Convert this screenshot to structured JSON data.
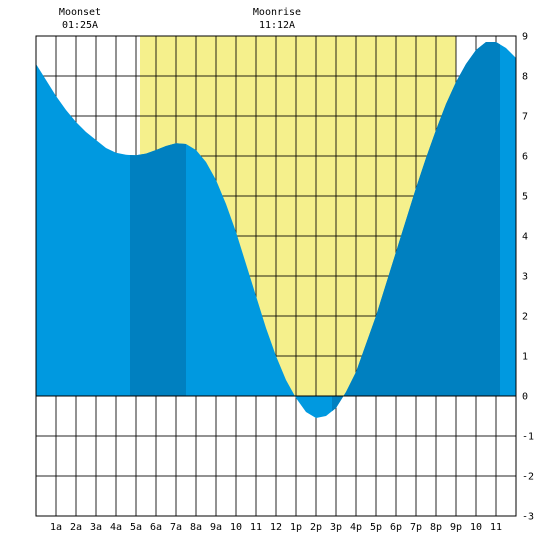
{
  "header": {
    "moonset_label": "Moonset",
    "moonset_time": "01:25A",
    "moonrise_label": "Moonrise",
    "moonrise_time": "11:12A"
  },
  "chart_data": {
    "type": "area",
    "title": "",
    "xlabel": "",
    "ylabel": "",
    "xlim": [
      0,
      24
    ],
    "ylim": [
      -3,
      9
    ],
    "x_tick_labels": [
      "1a",
      "2a",
      "3a",
      "4a",
      "5a",
      "6a",
      "7a",
      "8a",
      "9a",
      "10",
      "11",
      "12",
      "1p",
      "2p",
      "3p",
      "4p",
      "5p",
      "6p",
      "7p",
      "8p",
      "9p",
      "10",
      "11"
    ],
    "y_tick_labels": [
      "9",
      "8",
      "7",
      "6",
      "5",
      "4",
      "3",
      "2",
      "1",
      "0",
      "-1",
      "-2",
      "-3"
    ],
    "daylight": {
      "start_hour": 5.2,
      "end_hour": 21.0
    },
    "highlight_bands": [
      {
        "start_hour": 4.7,
        "end_hour": 7.5
      },
      {
        "start_hour": 14.8,
        "end_hour": 15.9
      },
      {
        "start_hour": 15.9,
        "end_hour": 23.2
      }
    ],
    "series": [
      {
        "x": [
          0,
          0.5,
          1,
          1.5,
          2,
          2.5,
          3,
          3.5,
          4,
          4.5,
          5,
          5.5,
          6,
          6.5,
          7,
          7.5,
          8,
          8.5,
          9,
          9.5,
          10,
          10.5,
          11,
          11.5,
          12,
          12.5,
          13,
          13.5,
          14,
          14.5,
          15,
          15.5,
          16,
          16.5,
          17,
          17.5,
          18,
          18.5,
          19,
          19.5,
          20,
          20.5,
          21,
          21.5,
          22,
          22.5,
          23,
          23.5,
          24
        ],
        "values": [
          8.3,
          7.9,
          7.5,
          7.15,
          6.85,
          6.6,
          6.4,
          6.2,
          6.08,
          6.03,
          6.02,
          6.06,
          6.15,
          6.25,
          6.32,
          6.3,
          6.15,
          5.85,
          5.4,
          4.8,
          4.1,
          3.3,
          2.5,
          1.7,
          1.0,
          0.4,
          -0.05,
          -0.4,
          -0.55,
          -0.5,
          -0.3,
          0.1,
          0.6,
          1.3,
          2.0,
          2.8,
          3.6,
          4.4,
          5.2,
          5.95,
          6.65,
          7.3,
          7.85,
          8.3,
          8.65,
          8.85,
          8.85,
          8.7,
          8.45
        ]
      }
    ]
  }
}
